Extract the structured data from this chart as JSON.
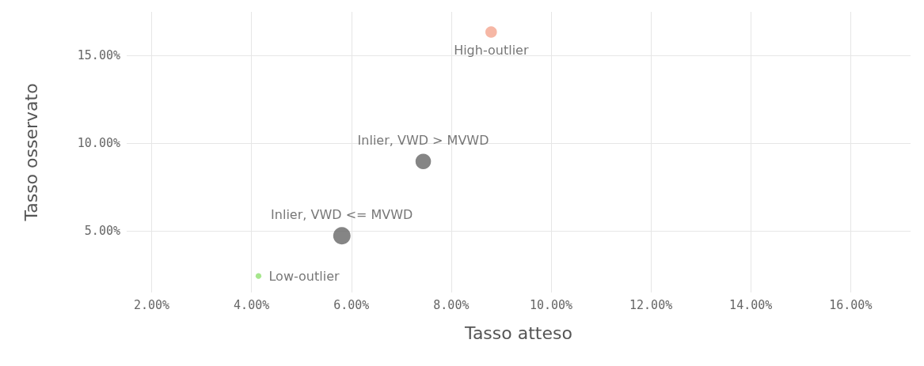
{
  "chart_data": {
    "type": "bubble",
    "xlabel": "Tasso atteso",
    "ylabel": "Tasso osservato",
    "x": [
      4.14,
      5.81,
      7.44,
      8.8
    ],
    "values": [
      2.44,
      4.73,
      8.97,
      16.35
    ],
    "sizes": [
      0.11,
      1,
      0.79,
      0.44
    ],
    "colors": [
      "#90e070",
      "#666666",
      "#666666",
      "#f4a58e"
    ],
    "xlim": [
      1.5,
      17.2
    ],
    "xticks": [
      {
        "value": 2,
        "label": "2.00%"
      },
      {
        "value": 4,
        "label": "4.00%"
      },
      {
        "value": 6,
        "label": "6.00%"
      },
      {
        "value": 8,
        "label": "8.00%"
      },
      {
        "value": 10,
        "label": "10.00%"
      },
      {
        "value": 12,
        "label": "12.00%"
      },
      {
        "value": 14,
        "label": "14.00%"
      },
      {
        "value": 16,
        "label": "16.00%"
      }
    ],
    "ylim": [
      1.5,
      17.5
    ],
    "yticks": [
      {
        "value": 5,
        "label": "5.00%"
      },
      {
        "value": 10,
        "label": "10.00%"
      },
      {
        "value": 15,
        "label": "15.00%"
      }
    ],
    "grid": true,
    "annotations": [
      {
        "text": "Low-outlier",
        "x": 4.14,
        "y": 2.44
      },
      {
        "text": "Inlier, VWD <= MVWD",
        "x": 5.81,
        "y": 4.73
      },
      {
        "text": "Inlier, VWD > MVWD",
        "x": 7.44,
        "y": 8.97
      },
      {
        "text": "High-outlier",
        "x": 8.8,
        "y": 16.35
      }
    ]
  }
}
